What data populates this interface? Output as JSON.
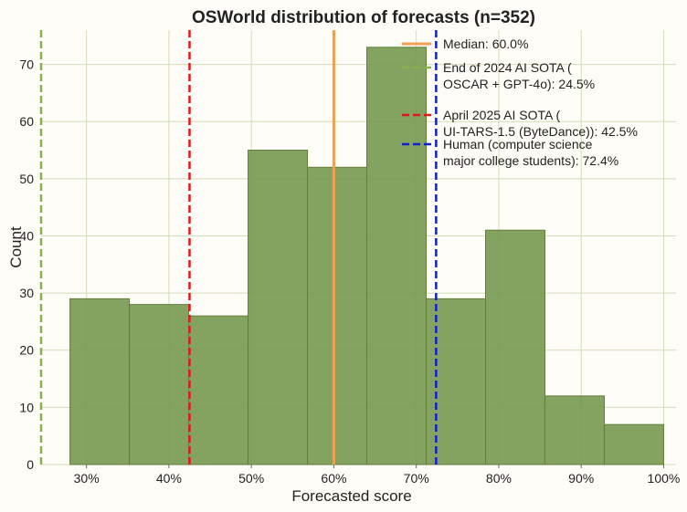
{
  "chart_data": {
    "type": "bar",
    "title": "OSWorld distribution of forecasts (n=352)",
    "xlabel": "Forecasted score",
    "ylabel": "Count",
    "xlim": [
      24.5,
      101.5
    ],
    "ylim": [
      0,
      76
    ],
    "xticks": [
      30,
      40,
      50,
      60,
      70,
      80,
      90,
      100
    ],
    "xtick_labels": [
      "30%",
      "40%",
      "50%",
      "60%",
      "70%",
      "80%",
      "90%",
      "100%"
    ],
    "yticks": [
      0,
      10,
      20,
      30,
      40,
      50,
      60,
      70
    ],
    "ytick_labels": [
      "0",
      "10",
      "20",
      "30",
      "40",
      "50",
      "60",
      "70"
    ],
    "bin_edges": [
      28,
      35.2,
      42.4,
      49.6,
      56.8,
      64,
      71.2,
      78.4,
      85.6,
      92.8,
      100
    ],
    "counts": [
      29,
      28,
      26,
      55,
      52,
      73,
      29,
      41,
      12,
      7
    ],
    "bar_color": "#7a9a52",
    "grid": true,
    "legend_position": "top-right",
    "reference_lines": [
      {
        "label_lines": [
          "Median: 60.0%"
        ],
        "x": 60.0,
        "color": "#f0a050",
        "style": "solid"
      },
      {
        "label_lines": [
          "End of 2024 AI SOTA (",
          "OSCAR + GPT-4o): 24.5%"
        ],
        "x": 24.5,
        "color": "#88b04b",
        "style": "dashed"
      },
      {
        "label_lines": [
          "April 2025 AI SOTA (",
          "UI-TARS-1.5 (ByteDance)): 42.5%"
        ],
        "x": 42.5,
        "color": "#e8141c",
        "style": "dashed"
      },
      {
        "label_lines": [
          "Human (computer science",
          "major college students): 72.4%"
        ],
        "x": 72.4,
        "color": "#1020d0",
        "style": "dashed"
      }
    ]
  }
}
